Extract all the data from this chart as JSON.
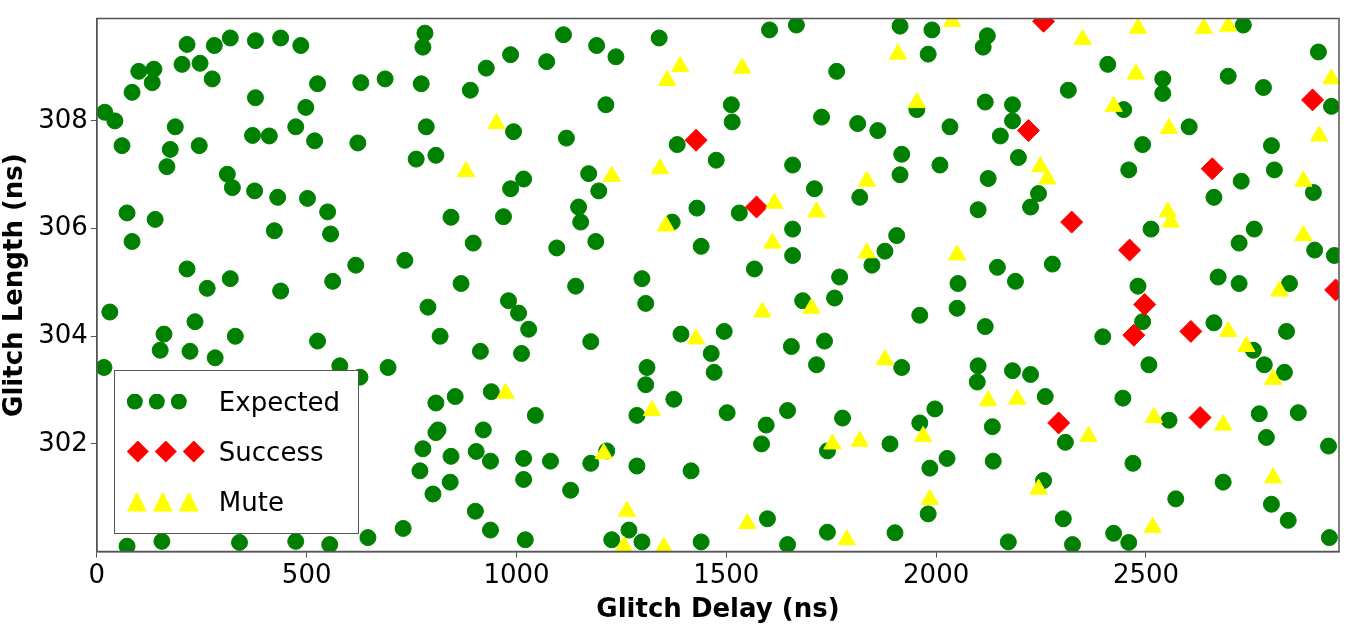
{
  "chart_data": {
    "type": "scatter",
    "xlabel": "Glitch Delay (ns)",
    "ylabel": "Glitch Length (ns)",
    "xlim": [
      0,
      2960
    ],
    "ylim": [
      300,
      309.9
    ],
    "xticks": [
      0,
      500,
      1000,
      1500,
      2000,
      2500
    ],
    "yticks": [
      302,
      304,
      306,
      308
    ],
    "legend": "bottom left",
    "series": [
      {
        "name": "Expected",
        "color": "#008000",
        "marker": "circle",
        "x": [
          215,
          280,
          318,
          378,
          438,
          486,
          782,
          777,
          100,
          136,
          203,
          246,
          275,
          84,
          132,
          526,
          629,
          687,
          773,
          378,
          498,
          19,
          43,
          187,
          60,
          175,
          244,
          167,
          371,
          411,
          474,
          519,
          622,
          785,
          761,
          808,
          311,
          323,
          376,
          431,
          502,
          550,
          72,
          84,
          139,
          423,
          557,
          215,
          263,
          318,
          438,
          562,
          617,
          734,
          31,
          160,
          234,
          330,
          526,
          789,
          818,
          17,
          151,
          222,
          282,
          579,
          627,
          694,
          808,
          808,
          777,
          770,
          801,
          730,
          340,
          474,
          72,
          155,
          555,
          646,
          1112,
          1191,
          1237,
          1340,
          1603,
          1667,
          986,
          928,
          1072,
          890,
          1763,
          1213,
          1512,
          1514,
          1727,
          1813,
          1861,
          993,
          1119,
          1383,
          1476,
          1658,
          1172,
          1017,
          986,
          1196,
          1710,
          1818,
          844,
          969,
          1148,
          1153,
          1430,
          1371,
          1531,
          1658,
          897,
          1096,
          1189,
          1440,
          1658,
          1567,
          868,
          1141,
          1299,
          1770,
          1847,
          1914,
          1990,
          2122,
          1981,
          2112,
          2732,
          2911,
          2409,
          2540,
          2540,
          2696,
          2780,
          2315,
          2117,
          2182,
          1954,
          2447,
          2942,
          2182,
          2033,
          2153,
          2603,
          2492,
          2799,
          1918,
          1914,
          2009,
          2196,
          2124,
          2459,
          2727,
          2806,
          2662,
          2899,
          2244,
          2225,
          2100,
          2512,
          2722,
          2758,
          2902,
          2949,
          1906,
          1878,
          2146,
          2189,
          2052,
          2277,
          2481,
          2672,
          2722,
          2842,
          1961,
          2050,
          2117,
          1918,
          2100,
          2182,
          2225,
          2260,
          2098,
          1997,
          1961,
          2134,
          1890,
          2026,
          1985,
          2136,
          2256,
          1981,
          1902,
          2308,
          2303,
          2325,
          2172,
          2445,
          2507,
          2397,
          2492,
          2555,
          2662,
          2835,
          2830,
          2782,
          2756,
          2770,
          2863,
          2787,
          2935,
          2469,
          2684,
          2571,
          2799,
          2839,
          2423,
          2459,
          2937,
          981,
          1005,
          1029,
          914,
          1177,
          1012,
          1308,
          1682,
          1758,
          1392,
          1495,
          1464,
          1471,
          1655,
          1734,
          1715,
          1311,
          1308,
          854,
          940,
          1045,
          1287,
          1375,
          1502,
          1595,
          1646,
          1584,
          1777,
          1741,
          813,
          921,
          844,
          904,
          938,
          1017,
          1081,
          1177,
          1215,
          1287,
          1416,
          1017,
          842,
          1129,
          902,
          938,
          1021,
          1227,
          1268,
          1299,
          1440,
          1598,
          1741,
          1646
        ],
        "values": [
          309.42,
          309.4,
          309.54,
          309.49,
          309.54,
          309.4,
          309.63,
          309.37,
          308.92,
          308.96,
          309.05,
          309.07,
          308.78,
          308.53,
          308.71,
          308.69,
          308.71,
          308.78,
          308.69,
          308.43,
          308.25,
          308.16,
          308.0,
          307.89,
          307.54,
          307.47,
          307.54,
          307.15,
          307.73,
          307.72,
          307.89,
          307.63,
          307.59,
          307.89,
          307.29,
          307.36,
          307.01,
          306.76,
          306.7,
          306.58,
          306.56,
          306.31,
          306.29,
          305.76,
          306.17,
          305.96,
          305.9,
          305.25,
          304.89,
          305.07,
          304.84,
          305.02,
          305.32,
          305.41,
          304.45,
          304.04,
          304.27,
          304.0,
          303.91,
          304.54,
          304.0,
          303.42,
          303.74,
          303.72,
          303.6,
          303.45,
          303.24,
          303.42,
          302.76,
          302.21,
          301.91,
          301.5,
          301.07,
          300.43,
          300.17,
          300.19,
          300.1,
          300.19,
          300.13,
          300.26,
          309.6,
          309.4,
          309.19,
          309.54,
          309.69,
          309.78,
          309.23,
          308.98,
          309.1,
          308.57,
          308.92,
          308.3,
          308.3,
          307.98,
          308.07,
          307.95,
          307.82,
          307.8,
          307.68,
          307.56,
          307.27,
          307.18,
          307.02,
          306.92,
          306.74,
          306.7,
          306.74,
          306.58,
          306.21,
          306.22,
          306.4,
          306.12,
          306.38,
          306.12,
          306.29,
          305.99,
          305.73,
          305.64,
          305.76,
          305.67,
          305.5,
          305.25,
          304.98,
          304.93,
          305.07,
          305.1,
          305.32,
          309.76,
          309.69,
          309.58,
          309.24,
          309.37,
          309.78,
          309.28,
          309.05,
          308.78,
          308.51,
          308.83,
          308.62,
          308.57,
          308.35,
          308.3,
          308.21,
          308.21,
          308.27,
          308.0,
          307.89,
          307.72,
          307.89,
          307.56,
          307.54,
          307.38,
          307.0,
          307.18,
          307.32,
          306.93,
          307.09,
          306.88,
          307.09,
          306.58,
          306.67,
          306.65,
          306.4,
          306.35,
          305.99,
          305.73,
          305.99,
          305.6,
          305.5,
          305.87,
          305.58,
          305.28,
          305.02,
          304.98,
          305.34,
          304.93,
          305.1,
          304.98,
          304.98,
          304.39,
          304.52,
          304.18,
          303.42,
          303.45,
          303.36,
          303.29,
          302.88,
          303.15,
          302.65,
          302.39,
          302.32,
          302.0,
          301.73,
          301.55,
          301.68,
          301.32,
          300.7,
          300.35,
          302.03,
          300.61,
          300.13,
          300.18,
          302.85,
          303.47,
          303.99,
          304.27,
          302.44,
          304.25,
          304.09,
          303.33,
          303.47,
          303.74,
          302.56,
          302.58,
          302.12,
          301.96,
          301.64,
          301.29,
          300.98,
          300.88,
          300.58,
          300.34,
          300.17,
          300.26,
          304.66,
          304.43,
          304.13,
          303.72,
          303.9,
          303.68,
          304.61,
          304.66,
          304.71,
          304.04,
          304.09,
          303.68,
          303.33,
          303.81,
          303.91,
          303.47,
          303.42,
          303.1,
          302.88,
          302.97,
          302.53,
          302.53,
          302.83,
          302.58,
          302.35,
          302.62,
          302.0,
          302.48,
          301.87,
          302.26,
          302.26,
          301.77,
          301.86,
          301.68,
          301.73,
          301.68,
          301.64,
          301.87,
          301.59,
          301.5,
          301.34,
          301.29,
          301.14,
          300.75,
          300.4,
          300.22,
          300.22,
          300.4,
          300.18,
          300.18,
          300.61,
          300.36,
          300.13
        ]
      },
      {
        "name": "Success",
        "color": "#ff0000",
        "marker": "diamond",
        "x": [
          1428,
          1572,
          2256,
          2897,
          2220,
          2658,
          2323,
          2461,
          2952,
          2497,
          2471,
          2607,
          2292,
          2629
        ],
        "values": [
          307.64,
          306.4,
          309.85,
          308.39,
          307.82,
          307.11,
          306.12,
          305.6,
          304.86,
          304.59,
          304.02,
          304.09,
          302.39,
          302.49
        ]
      },
      {
        "name": "Mute",
        "color": "#ffff00",
        "marker": "triangle",
        "x": [
          1390,
          1359,
          1538,
          952,
          880,
          1227,
          1342,
          1356,
          1615,
          1715,
          1610,
          1835,
          1835,
          2038,
          1909,
          2349,
          2481,
          2638,
          2696,
          2476,
          1954,
          2423,
          2555,
          2942,
          2913,
          2248,
          2265,
          2875,
          2552,
          2559,
          2875,
          2050,
          2818,
          1878,
          2124,
          2193,
          1969,
          2363,
          2519,
          2684,
          2803,
          2696,
          2739,
          2803,
          2244,
          1985,
          2516,
          1586,
          1703,
          1428,
          974,
          1323,
          1208,
          1753,
          1818,
          1263,
          1550,
          1787,
          1351,
          1256
        ],
        "values": [
          309.01,
          308.75,
          308.98,
          307.95,
          307.06,
          306.97,
          307.11,
          306.05,
          306.47,
          306.31,
          305.73,
          306.88,
          305.55,
          309.85,
          309.24,
          309.51,
          309.72,
          309.72,
          309.76,
          308.87,
          308.34,
          308.27,
          307.86,
          308.78,
          307.72,
          307.15,
          306.92,
          306.88,
          306.31,
          306.12,
          305.87,
          305.51,
          304.84,
          303.56,
          302.8,
          302.83,
          302.14,
          302.14,
          302.49,
          302.35,
          303.2,
          304.09,
          303.81,
          301.37,
          301.16,
          300.97,
          300.45,
          304.45,
          304.52,
          303.95,
          302.94,
          302.62,
          301.82,
          302.0,
          302.05,
          300.75,
          300.52,
          300.22,
          300.08,
          300.1
        ]
      }
    ]
  }
}
